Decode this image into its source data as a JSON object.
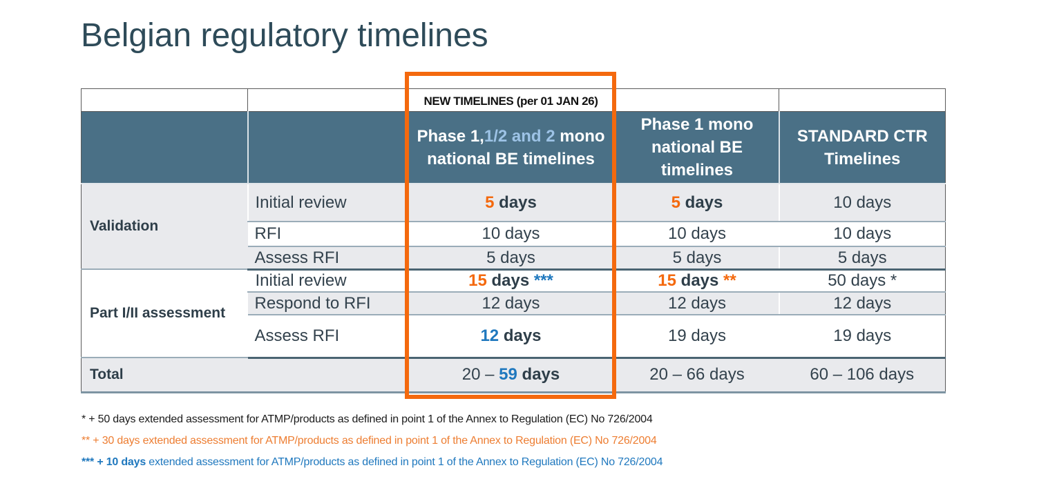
{
  "title": "Belgian regulatory timelines",
  "table": {
    "new_timelines_banner": "NEW TIMELINES (per 01 JAN 26)",
    "column_headers": [
      {
        "name": "phase-1-12-2-mono-national-be",
        "parts": [
          {
            "t": "Phase 1,",
            "c": "white"
          },
          {
            "t": "1/2 and 2",
            "c": "lightblue"
          },
          {
            "t": " mono national BE timelines",
            "c": "white"
          }
        ]
      },
      {
        "name": "phase-1-mono-national-be",
        "parts": [
          {
            "t": "Phase 1 mono national BE timelines",
            "c": "white"
          }
        ]
      },
      {
        "name": "standard-ctr",
        "parts": [
          {
            "t": "STANDARD CTR Timelines",
            "c": "white"
          }
        ]
      }
    ],
    "groups": [
      {
        "label": "Validation",
        "label_bg": "gray",
        "rows": [
          {
            "step": "Initial review",
            "bg": "gray",
            "cells": [
              [
                {
                  "t": "5",
                  "c": "orange-bold"
                },
                {
                  "t": " days",
                  "c": "dark-bold"
                }
              ],
              [
                {
                  "t": "5",
                  "c": "orange-bold"
                },
                {
                  "t": " days",
                  "c": "dark-bold"
                }
              ],
              [
                {
                  "t": "10 days",
                  "c": ""
                }
              ]
            ]
          },
          {
            "step": "RFI",
            "bg": "white",
            "cells": [
              [
                {
                  "t": "10 days",
                  "c": ""
                }
              ],
              [
                {
                  "t": "10 days",
                  "c": ""
                }
              ],
              [
                {
                  "t": "10 days",
                  "c": ""
                }
              ]
            ]
          },
          {
            "step": "Assess RFI",
            "bg": "gray",
            "cells": [
              [
                {
                  "t": "5 days",
                  "c": ""
                }
              ],
              [
                {
                  "t": "5 days",
                  "c": ""
                }
              ],
              [
                {
                  "t": "5 days",
                  "c": ""
                }
              ]
            ]
          }
        ]
      },
      {
        "label": "Part I/II assessment",
        "label_bg": "white",
        "rows": [
          {
            "step": "Initial review",
            "bg": "white",
            "cells": [
              [
                {
                  "t": "15",
                  "c": "orange-bold"
                },
                {
                  "t": " days ",
                  "c": "dark-bold"
                },
                {
                  "t": "***",
                  "c": "blue-bold"
                }
              ],
              [
                {
                  "t": "15",
                  "c": "orange-bold"
                },
                {
                  "t": " days ",
                  "c": "dark-bold"
                },
                {
                  "t": "**",
                  "c": "orange-bold"
                }
              ],
              [
                {
                  "t": "50 days *",
                  "c": ""
                }
              ]
            ]
          },
          {
            "step": "Respond to RFI",
            "bg": "gray",
            "cells": [
              [
                {
                  "t": "12 days",
                  "c": ""
                }
              ],
              [
                {
                  "t": "12 days",
                  "c": ""
                }
              ],
              [
                {
                  "t": "12 days",
                  "c": ""
                }
              ]
            ]
          },
          {
            "step": "Assess RFI",
            "bg": "white",
            "cells": [
              [
                {
                  "t": "12",
                  "c": "blue-bold"
                },
                {
                  "t": " days",
                  "c": "dark-bold"
                }
              ],
              [
                {
                  "t": "19 days",
                  "c": ""
                }
              ],
              [
                {
                  "t": "19 days",
                  "c": ""
                }
              ]
            ]
          }
        ]
      }
    ],
    "total": {
      "label": "Total",
      "cells": [
        [
          {
            "t": "20 – ",
            "c": ""
          },
          {
            "t": "59",
            "c": "blue-bold"
          },
          {
            "t": " days",
            "c": "dark-bold"
          }
        ],
        [
          {
            "t": "20 – 66 days",
            "c": ""
          }
        ],
        [
          {
            "t": "60 – 106 days",
            "c": ""
          }
        ]
      ]
    }
  },
  "footnotes": [
    {
      "color": "black",
      "parts": [
        {
          "t": "* + 50 days extended assessment for ATMP/products as defined in point 1 of the Annex to Regulation (EC) No 726/2004",
          "bold": false
        }
      ]
    },
    {
      "color": "orange",
      "parts": [
        {
          "t": "** + 30 days extended assessment for ATMP/products as defined in point 1 of the Annex to Regulation (EC) No 726/2004",
          "bold": false
        }
      ]
    },
    {
      "color": "blue",
      "parts": [
        {
          "t": "*** + 10 days",
          "bold": true
        },
        {
          "t": " extended assessment for ATMP/products as defined in point 1 of the Annex to Regulation (EC) No 726/2004",
          "bold": false
        }
      ]
    }
  ],
  "colors": {
    "header_bg": "#4A7086",
    "accent_orange": "#F4690E",
    "accent_blue": "#1F78BE",
    "light_blue": "#9DC3E6",
    "row_gray": "#E9EAED",
    "dark_text": "#33424D",
    "footnote_orange": "#ED7D31",
    "highlight_box_border": "#F4690E"
  }
}
